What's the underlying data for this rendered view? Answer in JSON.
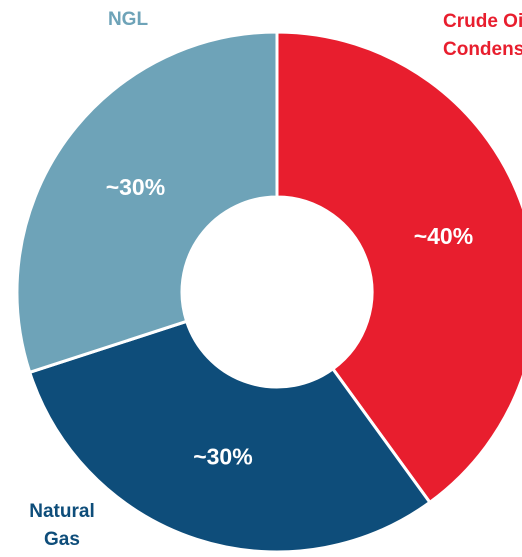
{
  "chart_data": {
    "type": "donut",
    "categories": [
      [
        "Crude Oil &",
        "Condensate"
      ],
      [
        "Natural",
        "Gas"
      ],
      [
        "NGL"
      ]
    ],
    "values": [
      40,
      30,
      30
    ],
    "value_labels": [
      "~40%",
      "~30%",
      "~30%"
    ],
    "colors": [
      "#e81e2e",
      "#0e4d7a",
      "#6ea3b8"
    ]
  }
}
